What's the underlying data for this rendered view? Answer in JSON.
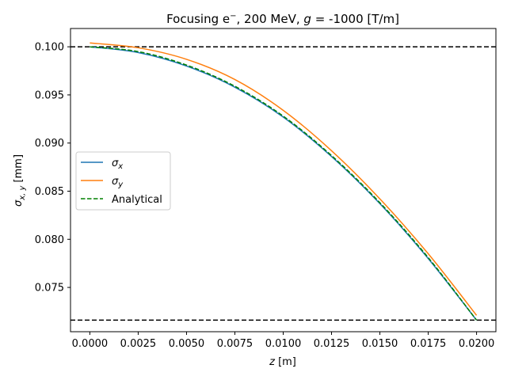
{
  "chart_data": {
    "type": "line",
    "title": "Focusing e⁻, 200 MeV, g = -1000 [T/m]",
    "title_parts": {
      "prefix": "Focusing e",
      "superscript": "−",
      "middle": ", 200 MeV, ",
      "g_symbol": "g",
      "suffix": " = -1000 [T/m]"
    },
    "xlabel": "z [m]",
    "xlabel_parts": {
      "symbol": "z",
      "unit": " [m]"
    },
    "ylabel": "σx,y [mm]",
    "ylabel_parts": {
      "symbol": "σ",
      "subscript": "x, y",
      "unit": " [mm]"
    },
    "xlim": [
      -0.001,
      0.021
    ],
    "ylim": [
      0.0704,
      0.1019
    ],
    "xticks": [
      0.0,
      0.0025,
      0.005,
      0.0075,
      0.01,
      0.0125,
      0.015,
      0.0175,
      0.02
    ],
    "xtick_labels": [
      "0.0000",
      "0.0025",
      "0.0050",
      "0.0075",
      "0.0100",
      "0.0125",
      "0.0150",
      "0.0175",
      "0.0200"
    ],
    "yticks": [
      0.075,
      0.08,
      0.085,
      0.09,
      0.095,
      0.1
    ],
    "ytick_labels": [
      "0.075",
      "0.080",
      "0.085",
      "0.090",
      "0.095",
      "0.100"
    ],
    "grid": false,
    "legend_position": "center-left",
    "reference_lines": [
      {
        "y": 0.1,
        "color": "#000000",
        "style": "dashed"
      },
      {
        "y": 0.0716,
        "color": "#000000",
        "style": "dashed"
      }
    ],
    "series": [
      {
        "name": "σx",
        "legend_symbol": "σ",
        "legend_subscript": "x",
        "color": "#1f77b4",
        "style": "solid",
        "x": [
          0.0,
          0.0025,
          0.005,
          0.0075,
          0.01,
          0.0125,
          0.015,
          0.0175,
          0.02
        ],
        "y": [
          0.1,
          0.0994,
          0.098,
          0.0958,
          0.0927,
          0.0886,
          0.0837,
          0.078,
          0.0716
        ]
      },
      {
        "name": "σy",
        "legend_symbol": "σ",
        "legend_subscript": "y",
        "color": "#ff7f0e",
        "style": "solid",
        "x": [
          0.0,
          0.0025,
          0.005,
          0.0075,
          0.01,
          0.0125,
          0.015,
          0.0175,
          0.02
        ],
        "y": [
          0.1004,
          0.0999,
          0.0987,
          0.0966,
          0.0934,
          0.0892,
          0.0842,
          0.0785,
          0.0721
        ]
      },
      {
        "name": "Analytical",
        "legend_symbol": "Analytical",
        "legend_subscript": "",
        "color": "#008000",
        "style": "dashed",
        "x": [
          0.0,
          0.0025,
          0.005,
          0.0075,
          0.01,
          0.0125,
          0.015,
          0.0175,
          0.02
        ],
        "y": [
          0.1,
          0.0995,
          0.0981,
          0.0959,
          0.0928,
          0.0887,
          0.0838,
          0.0781,
          0.0716
        ]
      }
    ]
  }
}
